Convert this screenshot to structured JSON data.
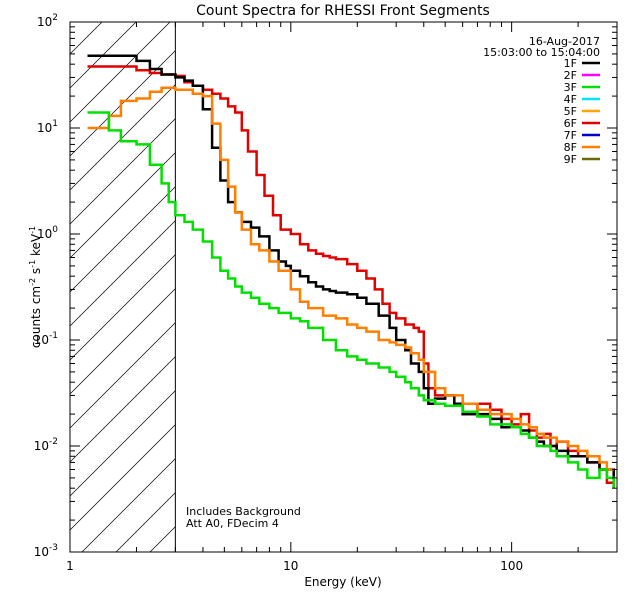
{
  "chart_data": {
    "type": "line",
    "title": "Count Spectra for RHESSI Front Segments",
    "xlabel": "Energy (keV)",
    "ylabel": {
      "base": "counts cm",
      "e1": "-2",
      "mid1": " s",
      "e2": "-1",
      "mid2": " keV",
      "e3": "-1"
    },
    "xscale": "log",
    "yscale": "log",
    "xlim": [
      1,
      300
    ],
    "ylim": [
      0.001,
      100
    ],
    "x_ticks": [
      {
        "v": 1,
        "label": "1"
      },
      {
        "v": 10,
        "label": "10"
      },
      {
        "v": 100,
        "label": "100"
      }
    ],
    "y_ticks": [
      {
        "v": 0.001,
        "base": "10",
        "exp": "-3"
      },
      {
        "v": 0.01,
        "base": "10",
        "exp": "-2"
      },
      {
        "v": 0.1,
        "base": "10",
        "exp": "-1"
      },
      {
        "v": 1,
        "base": "10",
        "exp": "0"
      },
      {
        "v": 10,
        "base": "10",
        "exp": "1"
      },
      {
        "v": 100,
        "base": "10",
        "exp": "2"
      }
    ],
    "date": "16-Aug-2017",
    "time_range": "15:03:00 to 15:04:00",
    "shaded_region": {
      "x_min": 1,
      "x_max": 3
    },
    "annotation_lines": [
      "Includes Background",
      "Att A0, FDecim 4"
    ],
    "legend": [
      {
        "label": "1F",
        "color": "#000000"
      },
      {
        "label": "2F",
        "color": "#ff00ff"
      },
      {
        "label": "3F",
        "color": "#00e000"
      },
      {
        "label": "4F",
        "color": "#00e0ff"
      },
      {
        "label": "5F",
        "color": "#ffa500"
      },
      {
        "label": "6F",
        "color": "#e00000"
      },
      {
        "label": "7F",
        "color": "#0000cc"
      },
      {
        "label": "8F",
        "color": "#ff7f00"
      },
      {
        "label": "9F",
        "color": "#6b6b00"
      }
    ],
    "series": [
      {
        "name": "6F",
        "color": "#e00000",
        "x": [
          1.2,
          1.6,
          2.0,
          2.3,
          2.6,
          3.0,
          3.3,
          3.6,
          4.0,
          4.4,
          4.8,
          5.2,
          5.6,
          6.0,
          6.4,
          7.0,
          7.6,
          8.3,
          9.0,
          10,
          11,
          12,
          13,
          14,
          15,
          16,
          18,
          20,
          22,
          24,
          26,
          28,
          30,
          33,
          36,
          38,
          40,
          42,
          45,
          50,
          55,
          60,
          70,
          80,
          90,
          100,
          110,
          120,
          130,
          140,
          150,
          160,
          180,
          200,
          220,
          250,
          270,
          290
        ],
        "y": [
          38,
          38,
          35,
          33,
          32,
          31,
          27,
          25,
          23,
          21,
          19,
          16,
          14,
          9.5,
          6.0,
          3.6,
          2.3,
          1.5,
          1.1,
          1.0,
          0.8,
          0.7,
          0.65,
          0.62,
          0.6,
          0.58,
          0.52,
          0.45,
          0.38,
          0.3,
          0.22,
          0.18,
          0.16,
          0.14,
          0.13,
          0.12,
          0.06,
          0.035,
          0.03,
          0.03,
          0.025,
          0.02,
          0.025,
          0.022,
          0.018,
          0.016,
          0.02,
          0.014,
          0.012,
          0.013,
          0.01,
          0.011,
          0.009,
          0.008,
          0.007,
          0.006,
          0.0045,
          0.004
        ]
      },
      {
        "name": "1F",
        "color": "#000000",
        "x": [
          1.2,
          1.6,
          2.0,
          2.3,
          2.6,
          3.0,
          3.3,
          3.6,
          4.0,
          4.4,
          4.8,
          5.2,
          5.6,
          6.0,
          6.6,
          7.2,
          8.0,
          8.8,
          9.5,
          10,
          11,
          12,
          13,
          14,
          15,
          16,
          18,
          20,
          22,
          25,
          28,
          30,
          33,
          35,
          38,
          40,
          42,
          45,
          50,
          55,
          60,
          70,
          80,
          90,
          100,
          110,
          120,
          130,
          140,
          150,
          160,
          180,
          200,
          220,
          250,
          270,
          290
        ],
        "y": [
          48,
          48,
          43,
          36,
          32,
          30,
          28,
          25,
          15,
          6.5,
          3.2,
          2.0,
          1.6,
          1.3,
          1.15,
          0.95,
          0.7,
          0.55,
          0.5,
          0.45,
          0.4,
          0.35,
          0.32,
          0.3,
          0.29,
          0.28,
          0.27,
          0.25,
          0.22,
          0.17,
          0.13,
          0.1,
          0.08,
          0.06,
          0.05,
          0.035,
          0.025,
          0.028,
          0.03,
          0.025,
          0.02,
          0.02,
          0.018,
          0.015,
          0.015,
          0.014,
          0.012,
          0.011,
          0.01,
          0.01,
          0.009,
          0.008,
          0.008,
          0.007,
          0.006,
          0.006,
          0.005
        ]
      },
      {
        "name": "8F",
        "color": "#ff7f00",
        "x": [
          1.2,
          1.35,
          1.5,
          1.7,
          2.0,
          2.3,
          2.6,
          3.0,
          3.3,
          3.6,
          4.0,
          4.4,
          4.8,
          5.2,
          5.6,
          6.0,
          6.6,
          7.2,
          8.0,
          8.8,
          10,
          11,
          12,
          14,
          16,
          18,
          20,
          22,
          25,
          28,
          30,
          33,
          35,
          38,
          40,
          45,
          50,
          60,
          70,
          80,
          90,
          100,
          110,
          120,
          130,
          140,
          150,
          160,
          180,
          200,
          220,
          250,
          270,
          290
        ],
        "y": [
          10,
          10,
          13,
          18,
          19,
          22,
          24,
          23,
          23,
          21,
          20,
          11,
          5.0,
          2.8,
          1.6,
          1.1,
          0.8,
          0.7,
          0.55,
          0.45,
          0.3,
          0.23,
          0.2,
          0.17,
          0.16,
          0.14,
          0.13,
          0.12,
          0.1,
          0.095,
          0.09,
          0.085,
          0.075,
          0.065,
          0.05,
          0.035,
          0.03,
          0.025,
          0.022,
          0.02,
          0.02,
          0.018,
          0.016,
          0.015,
          0.013,
          0.012,
          0.012,
          0.011,
          0.01,
          0.009,
          0.008,
          0.007,
          0.006,
          0.006
        ]
      },
      {
        "name": "3F",
        "color": "#00e000",
        "x": [
          1.2,
          1.35,
          1.5,
          1.7,
          2.0,
          2.3,
          2.6,
          2.8,
          3.0,
          3.3,
          3.6,
          4.0,
          4.4,
          4.8,
          5.2,
          5.6,
          6.0,
          6.6,
          7.2,
          8.0,
          8.8,
          10,
          11,
          12,
          14,
          16,
          18,
          20,
          22,
          25,
          28,
          30,
          33,
          35,
          38,
          40,
          45,
          50,
          60,
          70,
          80,
          90,
          100,
          110,
          120,
          130,
          140,
          150,
          160,
          180,
          200,
          220,
          250,
          270,
          290
        ],
        "y": [
          14,
          14,
          9.5,
          7.5,
          7.0,
          4.5,
          3.0,
          2.0,
          1.5,
          1.3,
          1.1,
          0.85,
          0.6,
          0.45,
          0.38,
          0.32,
          0.28,
          0.25,
          0.22,
          0.2,
          0.18,
          0.16,
          0.15,
          0.13,
          0.1,
          0.08,
          0.07,
          0.065,
          0.06,
          0.055,
          0.05,
          0.045,
          0.04,
          0.035,
          0.03,
          0.027,
          0.025,
          0.024,
          0.021,
          0.019,
          0.016,
          0.016,
          0.015,
          0.013,
          0.012,
          0.01,
          0.01,
          0.009,
          0.008,
          0.007,
          0.006,
          0.005,
          0.006,
          0.005,
          0.004
        ]
      }
    ]
  }
}
